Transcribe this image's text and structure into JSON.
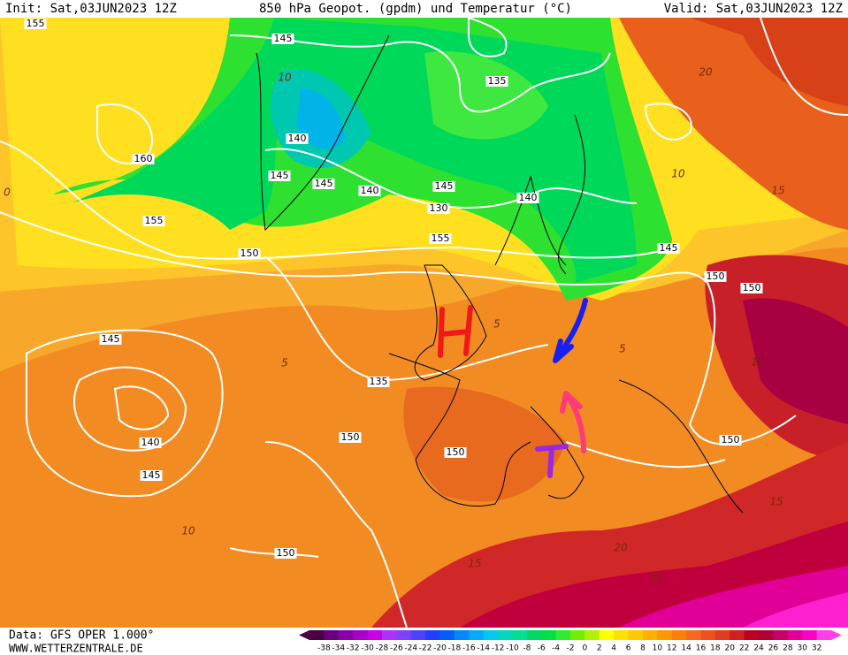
{
  "header": {
    "init": "Init: Sat,03JUN2023 12Z",
    "title": "850 hPa Geopot. (gpdm) und Temperatur (°C)",
    "valid": "Valid: Sat,03JUN2023 12Z"
  },
  "contours": [
    "155",
    "145",
    "135",
    "140",
    "160",
    "145",
    "145",
    "140",
    "145",
    "140",
    "130",
    "155",
    "155",
    "150",
    "145",
    "145",
    "150",
    "150",
    "150",
    "150",
    "140",
    "145",
    "150",
    "150",
    "135"
  ],
  "isotherms": [
    "10",
    "5",
    "5",
    "20",
    "15",
    "10",
    "15",
    "10",
    "15",
    "20",
    "25",
    "15",
    "5",
    "0"
  ],
  "colorbar": {
    "labels": [
      -38,
      -34,
      -32,
      -30,
      -28,
      -26,
      -24,
      -22,
      -20,
      -18,
      -16,
      -14,
      -12,
      -10,
      -8,
      -6,
      -4,
      -2,
      0,
      2,
      4,
      6,
      8,
      10,
      12,
      14,
      16,
      18,
      20,
      22,
      24,
      26,
      28,
      30,
      32
    ],
    "colors": [
      "#4b0040",
      "#6a0080",
      "#8a00a8",
      "#a800c8",
      "#c800e8",
      "#b030ff",
      "#8040ff",
      "#5040ff",
      "#2040ff",
      "#0060ff",
      "#0088ff",
      "#00aaff",
      "#00c8f0",
      "#00d8c0",
      "#00e090",
      "#00d868",
      "#00e040",
      "#30ec30",
      "#70f000",
      "#b0f000",
      "#ffff00",
      "#ffe000",
      "#ffc800",
      "#ffb000",
      "#ff9800",
      "#ff8000",
      "#f86820",
      "#f05020",
      "#e03c20",
      "#d02020",
      "#c00020",
      "#b00038",
      "#c80068",
      "#e00098",
      "#ff00c8",
      "#ff40e8"
    ]
  },
  "footer": {
    "data": "Data: GFS OPER 1.000°",
    "site": "WWW.WETTERZENTRALE.DE"
  }
}
